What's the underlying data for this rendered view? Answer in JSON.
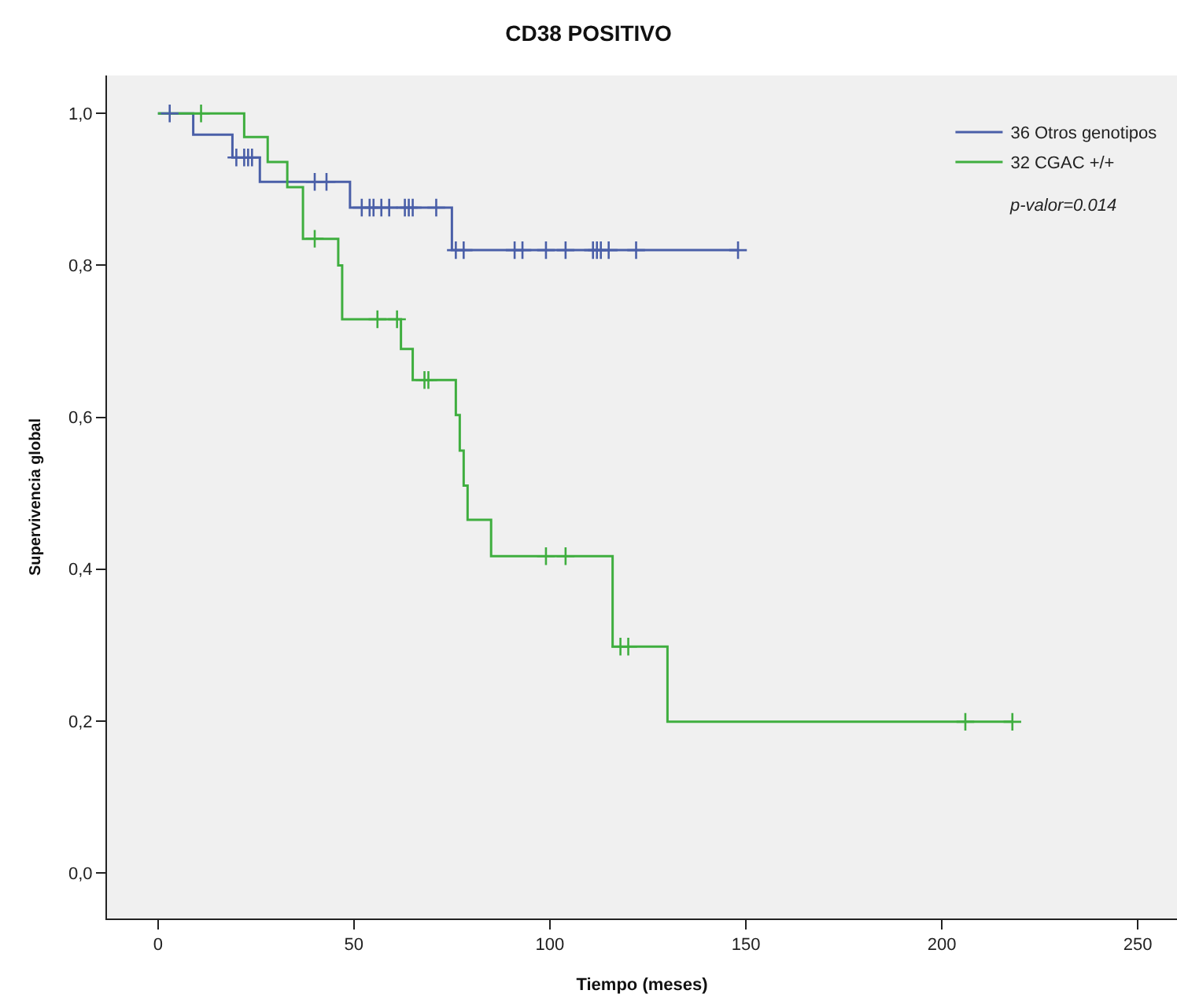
{
  "chart_data": {
    "type": "step",
    "title": "CD38 POSITIVO",
    "xlabel": "Tiempo (meses)",
    "ylabel": "Supervivencia global",
    "series": [
      {
        "name": "36 Otros genotipos",
        "color": "#4a5fa8",
        "x": [
          0,
          9,
          19,
          26,
          49,
          75,
          148
        ],
        "values": [
          1.0,
          0.972,
          0.942,
          0.91,
          0.876,
          0.82,
          0.82
        ]
      },
      {
        "name": "32 CGAC +/+",
        "color": "#3fae3f",
        "x": [
          0,
          22,
          28,
          33,
          37,
          46,
          47,
          62,
          65,
          76,
          77,
          78,
          79,
          85,
          116,
          130,
          218
        ],
        "values": [
          1.0,
          0.969,
          0.936,
          0.903,
          0.835,
          0.8,
          0.729,
          0.69,
          0.649,
          0.603,
          0.556,
          0.51,
          0.465,
          0.417,
          0.298,
          0.199,
          0.199
        ]
      },
      {
        "color": "#4a5fa8",
        "type": "scatter",
        "marker": "cross",
        "x": [
          3,
          20,
          22,
          23,
          24,
          40,
          43,
          52,
          54,
          55,
          57,
          59,
          63,
          64,
          65,
          71,
          76,
          78,
          91,
          93,
          99,
          104,
          111,
          112,
          113,
          115,
          122,
          148
        ],
        "values": [
          1.0,
          0.942,
          0.942,
          0.942,
          0.942,
          0.91,
          0.91,
          0.876,
          0.876,
          0.876,
          0.876,
          0.876,
          0.876,
          0.876,
          0.876,
          0.876,
          0.82,
          0.82,
          0.82,
          0.82,
          0.82,
          0.82,
          0.82,
          0.82,
          0.82,
          0.82,
          0.82,
          0.82
        ]
      },
      {
        "color": "#3fae3f",
        "type": "scatter",
        "marker": "cross",
        "x": [
          11,
          40,
          56,
          61,
          68,
          69,
          99,
          104,
          118,
          120,
          206,
          218
        ],
        "values": [
          1.0,
          0.835,
          0.729,
          0.729,
          0.649,
          0.649,
          0.417,
          0.417,
          0.298,
          0.298,
          0.199,
          0.199
        ]
      }
    ],
    "xlim": [
      -13,
      260
    ],
    "ylim": [
      -0.06,
      1.05
    ],
    "xticks": [
      0,
      50,
      100,
      150,
      200,
      250
    ],
    "yticks": [
      {
        "value": 0,
        "label": "0,0"
      },
      {
        "value": 0.2,
        "label": "0,2"
      },
      {
        "value": 0.4,
        "label": "0,4"
      },
      {
        "value": 0.6,
        "label": "0,6"
      },
      {
        "value": 0.8,
        "label": "0,8"
      },
      {
        "value": 1.0,
        "label": "1,0"
      }
    ],
    "grid": false,
    "legend": "top right",
    "annotations": [
      "p-valor=0.014"
    ]
  }
}
